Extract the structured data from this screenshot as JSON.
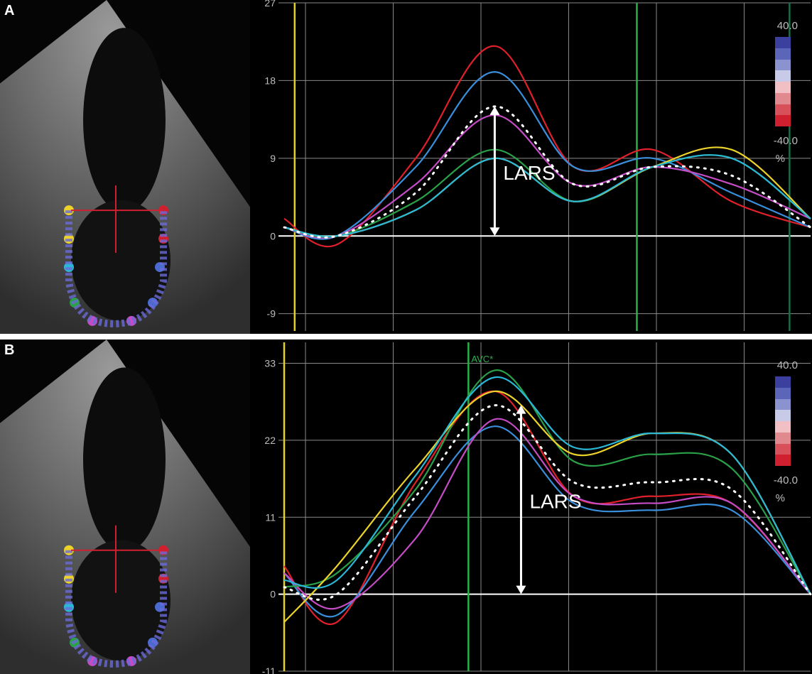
{
  "panels": [
    {
      "id": "A",
      "label": "A",
      "scale": {
        "top": "40.0",
        "bottom": "-40.0",
        "unit": "%"
      }
    },
    {
      "id": "B",
      "label": "B",
      "scale": {
        "top": "40.0",
        "bottom": "-40.0",
        "unit": "%"
      }
    }
  ],
  "colors": {
    "red": "#e0202a",
    "blue": "#3a8fdc",
    "magenta": "#c44cc4",
    "green": "#2aa048",
    "yellow": "#ecd22a",
    "cyan": "#2ab8d6",
    "avg": "#ffffff",
    "grid": "#8a8a8a",
    "axis_zero": "#ffffff",
    "marker_yellow": "#e6d21e",
    "marker_green": "#2ab04a",
    "marker_dark": "#1d6b4a"
  },
  "chart_data": [
    {
      "type": "line",
      "panel": "A",
      "ylim": [
        -11,
        27
      ],
      "yticks": [
        27,
        18,
        9,
        0,
        -9
      ],
      "x": [
        0,
        10,
        25,
        40,
        55,
        70,
        85,
        100
      ],
      "series": [
        {
          "color": "red",
          "values": [
            2,
            -1,
            9,
            22,
            8,
            10,
            4,
            1
          ]
        },
        {
          "color": "blue",
          "values": [
            1,
            0,
            8,
            19,
            8,
            9,
            5,
            1
          ]
        },
        {
          "color": "magenta",
          "values": [
            1,
            0,
            6,
            14,
            6,
            8,
            6,
            2
          ]
        },
        {
          "color": "green",
          "values": [
            1,
            0,
            4,
            10,
            4,
            8,
            9,
            2
          ]
        },
        {
          "color": "yellow",
          "values": [
            1,
            0,
            3,
            9,
            4,
            8,
            10,
            2
          ]
        },
        {
          "color": "cyan",
          "values": [
            1,
            0,
            3,
            9,
            4,
            8,
            9,
            2
          ]
        },
        {
          "color": "avg",
          "dotted": true,
          "values": [
            1,
            0,
            5,
            15,
            6,
            8,
            7,
            1
          ]
        }
      ],
      "markers": [
        {
          "x": 2,
          "color": "marker_yellow"
        },
        {
          "x": 67,
          "color": "marker_green"
        },
        {
          "x": 96,
          "color": "marker_dark"
        }
      ],
      "annotation": {
        "text": "LARS",
        "x": 40,
        "y_from": 0,
        "y_to": 15
      }
    },
    {
      "type": "line",
      "panel": "B",
      "ylim": [
        -11,
        36
      ],
      "yticks": [
        33,
        22,
        11,
        0,
        -11
      ],
      "x": [
        0,
        10,
        25,
        40,
        55,
        70,
        85,
        100
      ],
      "series": [
        {
          "color": "red",
          "values": [
            4,
            -4,
            16,
            29,
            14,
            14,
            13,
            0
          ]
        },
        {
          "color": "blue",
          "values": [
            3,
            -3,
            12,
            24,
            13,
            12,
            12,
            0
          ]
        },
        {
          "color": "magenta",
          "values": [
            3,
            -2,
            8,
            25,
            14,
            13,
            13,
            0
          ]
        },
        {
          "color": "green",
          "values": [
            1,
            3,
            15,
            32,
            19,
            20,
            18,
            0
          ]
        },
        {
          "color": "yellow",
          "values": [
            -4,
            4,
            18,
            29,
            20,
            23,
            20,
            0
          ]
        },
        {
          "color": "cyan",
          "values": [
            2,
            2,
            17,
            31,
            21,
            23,
            20,
            0
          ]
        },
        {
          "color": "avg",
          "dotted": true,
          "values": [
            1,
            0,
            14,
            27,
            16,
            16,
            15,
            0
          ]
        }
      ],
      "markers": [
        {
          "x": 0,
          "color": "marker_yellow"
        },
        {
          "x": 35,
          "color": "marker_green",
          "label": "AVC*"
        }
      ],
      "annotation": {
        "text": "LARS",
        "x": 45,
        "y_from": 0,
        "y_to": 27
      }
    }
  ]
}
